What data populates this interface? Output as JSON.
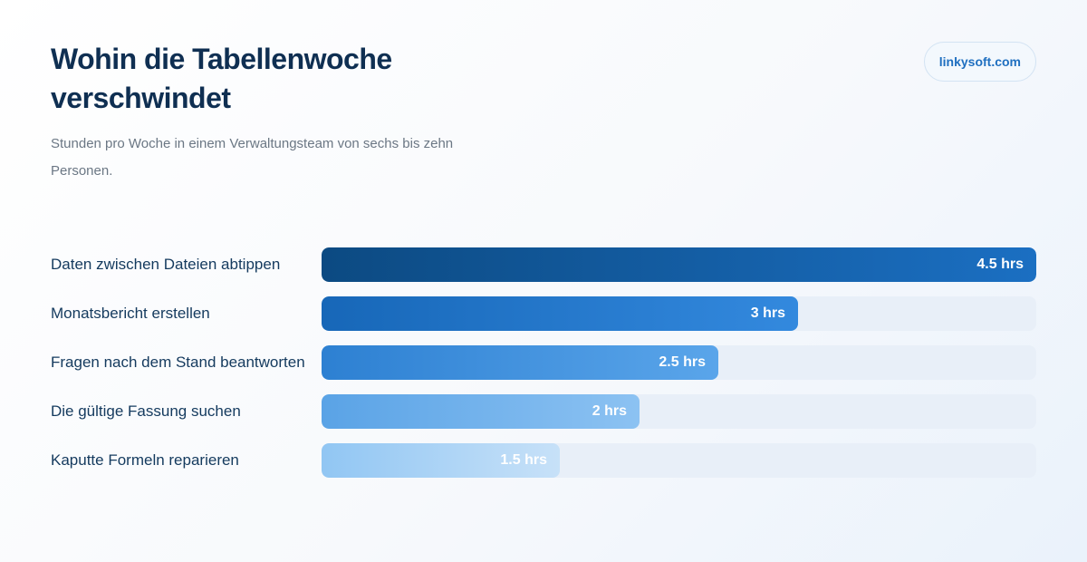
{
  "header": {
    "title": "Wohin die Tabellenwoche verschwindet",
    "subtitle": "Stunden pro Woche in einem Verwaltungsteam von sechs bis zehn Personen."
  },
  "brand": {
    "badge_text": "linkysoft.com"
  },
  "chart_data": {
    "type": "bar",
    "orientation": "horizontal",
    "title": "Wohin die Tabellenwoche verschwindet",
    "subtitle": "Stunden pro Woche in einem Verwaltungsteam von sechs bis zehn Personen.",
    "categories": [
      "Daten zwischen Dateien abtippen",
      "Monatsbericht erstellen",
      "Fragen nach dem Stand beantworten",
      "Die gültige Fassung suchen",
      "Kaputte Formeln reparieren"
    ],
    "values": [
      4.5,
      3,
      2.5,
      2,
      1.5
    ],
    "value_labels": [
      "4.5 hrs",
      "3 hrs",
      "2.5 hrs",
      "2 hrs",
      "1.5 hrs"
    ],
    "xlim": [
      0,
      4.5
    ],
    "grid": false,
    "legend": "none",
    "colors": [
      [
        "#0c4a82",
        "#1b6fc2"
      ],
      [
        "#1767b8",
        "#3389de"
      ],
      [
        "#2d80d2",
        "#5aa5ea"
      ],
      [
        "#5aa3e6",
        "#8cc2f2"
      ],
      [
        "#91c6f3",
        "#c7e1f8"
      ]
    ]
  }
}
